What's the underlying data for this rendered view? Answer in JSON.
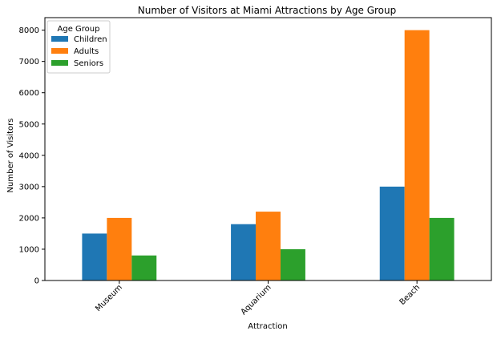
{
  "chart_data": {
    "type": "bar",
    "title": "Number of Visitors at Miami Attractions by Age Group",
    "xlabel": "Attraction",
    "ylabel": "Number of Visitors",
    "categories": [
      "Museum",
      "Aquarium",
      "Beach"
    ],
    "series": [
      {
        "name": "Children",
        "color": "#1f77b4",
        "values": [
          1500,
          1800,
          3000
        ]
      },
      {
        "name": "Adults",
        "color": "#ff7f0e",
        "values": [
          2000,
          2200,
          8000
        ]
      },
      {
        "name": "Seniors",
        "color": "#2ca02c",
        "values": [
          800,
          1000,
          2000
        ]
      }
    ],
    "ylim": [
      0,
      8400
    ],
    "yticks": [
      0,
      1000,
      2000,
      3000,
      4000,
      5000,
      6000,
      7000,
      8000
    ],
    "legend": {
      "title": "Age Group",
      "placement": "upper-left"
    },
    "grid": false
  }
}
